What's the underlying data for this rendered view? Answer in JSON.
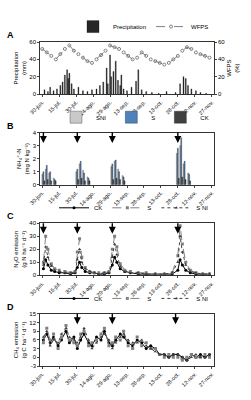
{
  "chart_data": [
    {
      "title": "A",
      "type": "bar",
      "xlim": [
        -2,
        152
      ],
      "xticks": [
        {
          "value": 0,
          "label": "30-jun."
        },
        {
          "value": 15,
          "label": "15-jul."
        },
        {
          "value": 30,
          "label": "30-jul."
        },
        {
          "value": 45,
          "label": "14-ago."
        },
        {
          "value": 60,
          "label": "29-ago."
        },
        {
          "value": 75,
          "label": "13-sep."
        },
        {
          "value": 90,
          "label": "28-sep."
        },
        {
          "value": 105,
          "label": "13-oct."
        },
        {
          "value": 120,
          "label": "28-oct."
        },
        {
          "value": 135,
          "label": "12-nov."
        },
        {
          "value": 150,
          "label": "27-nov."
        }
      ],
      "ylabel": "Precipitation (mm)",
      "ylim": [
        0,
        60
      ],
      "yticks": [
        0,
        20,
        40,
        60
      ],
      "y2label": "WFPS (%)",
      "y2lim": [
        0,
        60
      ],
      "y2ticks": [
        0,
        20,
        40,
        60
      ],
      "series": [
        {
          "name": "Precipitation",
          "type": "bar",
          "color": "#262626",
          "x": [
            2,
            5,
            7,
            10,
            13,
            16,
            18,
            20,
            22,
            23,
            24,
            26,
            28,
            32,
            36,
            40,
            44,
            48,
            51,
            54,
            57,
            58,
            60,
            61,
            63,
            65,
            67,
            69,
            70,
            72,
            75,
            79,
            83,
            85,
            88,
            92,
            97,
            103,
            110,
            118,
            122,
            125,
            127,
            129,
            132,
            136,
            140,
            145
          ],
          "values": [
            5,
            3,
            8,
            4,
            6,
            10,
            14,
            22,
            28,
            18,
            24,
            12,
            6,
            8,
            4,
            3,
            5,
            6,
            10,
            14,
            30,
            12,
            45,
            20,
            26,
            38,
            16,
            10,
            22,
            6,
            4,
            8,
            15,
            28,
            5,
            3,
            2,
            1,
            3,
            2,
            12,
            20,
            18,
            10,
            6,
            4,
            2,
            1
          ]
        },
        {
          "name": "WFPS",
          "type": "line",
          "axis": "y2",
          "color": "#7f7f7f",
          "marker": "circle-open",
          "line_style": "dash",
          "x": [
            0,
            4,
            8,
            12,
            16,
            20,
            24,
            28,
            32,
            36,
            40,
            44,
            48,
            52,
            56,
            60,
            64,
            68,
            72,
            76,
            80,
            84,
            88,
            92,
            96,
            100,
            104,
            108,
            112,
            116,
            120,
            124,
            128,
            132,
            136,
            140,
            144,
            148
          ],
          "values": [
            52,
            48,
            44,
            40,
            46,
            52,
            56,
            50,
            46,
            42,
            38,
            36,
            40,
            45,
            50,
            56,
            54,
            52,
            48,
            44,
            40,
            42,
            48,
            44,
            40,
            38,
            36,
            34,
            36,
            40,
            44,
            50,
            54,
            52,
            48,
            46,
            44,
            42
          ]
        }
      ]
    },
    {
      "title": "B",
      "type": "bar",
      "xlim": [
        -2,
        152
      ],
      "xticks": [
        {
          "value": 0,
          "label": "30-jun."
        },
        {
          "value": 15,
          "label": "15-jul."
        },
        {
          "value": 30,
          "label": "30-jul."
        },
        {
          "value": 45,
          "label": "14-ago."
        },
        {
          "value": 60,
          "label": "29-ago."
        },
        {
          "value": 75,
          "label": "13-sep."
        },
        {
          "value": 90,
          "label": "28-sep."
        },
        {
          "value": 105,
          "label": "13-oct."
        },
        {
          "value": 120,
          "label": "28-oct."
        },
        {
          "value": 135,
          "label": "12-nov."
        },
        {
          "value": 150,
          "label": "27-nov."
        }
      ],
      "ylabel": "NH₄⁺-N (mg N kg⁻¹)",
      "ylim": [
        0,
        4
      ],
      "yticks": [
        0,
        1,
        2,
        3,
        4
      ],
      "arrows": [
        1,
        31,
        62,
        120
      ],
      "x": [
        1,
        4,
        7,
        11,
        31,
        34,
        37,
        41,
        62,
        65,
        68,
        72,
        120,
        123,
        126,
        130
      ],
      "series": [
        {
          "name": "SNI",
          "color": "#c9c9c9",
          "values": [
            0.8,
            1.2,
            0.9,
            0.5,
            1.0,
            1.6,
            1.1,
            0.6,
            1.4,
            1.8,
            1.2,
            0.7,
            2.4,
            3.0,
            1.6,
            0.9
          ]
        },
        {
          "name": "S",
          "color": "#4f81bd",
          "values": [
            1.0,
            1.5,
            1.0,
            0.4,
            1.2,
            1.8,
            0.9,
            0.5,
            1.6,
            1.9,
            1.0,
            0.6,
            2.8,
            3.6,
            1.8,
            0.8
          ]
        },
        {
          "name": "CK",
          "color": "#404040",
          "values": [
            0.3,
            0.4,
            0.3,
            0.3,
            0.4,
            0.5,
            0.3,
            0.3,
            0.4,
            0.5,
            0.4,
            0.3,
            0.5,
            0.6,
            0.4,
            0.3
          ]
        }
      ]
    },
    {
      "title": "C",
      "type": "line",
      "xlim": [
        -2,
        152
      ],
      "xticks": [
        {
          "value": 0,
          "label": "30-jun."
        },
        {
          "value": 15,
          "label": "15-jul."
        },
        {
          "value": 30,
          "label": "30-jul."
        },
        {
          "value": 45,
          "label": "14-ago."
        },
        {
          "value": 60,
          "label": "29-ago."
        },
        {
          "value": 75,
          "label": "13-sep."
        },
        {
          "value": 90,
          "label": "28-sep."
        },
        {
          "value": 105,
          "label": "13-oct."
        },
        {
          "value": 120,
          "label": "28-oct."
        },
        {
          "value": 135,
          "label": "12-nov."
        },
        {
          "value": 150,
          "label": "27-nov."
        }
      ],
      "ylabel": "N₂O emission (g N ha⁻¹ d⁻¹)",
      "ylim": [
        0,
        40
      ],
      "yticks": [
        0,
        10,
        20,
        30,
        40
      ],
      "arrows": [
        1,
        31,
        62,
        120
      ],
      "x": [
        1,
        3,
        5,
        8,
        11,
        15,
        20,
        25,
        29,
        31,
        33,
        35,
        38,
        42,
        46,
        50,
        55,
        59,
        62,
        64,
        66,
        69,
        73,
        78,
        85,
        92,
        100,
        108,
        115,
        120,
        122,
        124,
        127,
        131,
        136,
        142,
        148
      ],
      "series": [
        {
          "name": "CK",
          "color": "#000000",
          "marker": "circle",
          "line_style": "solid",
          "values": [
            5,
            12,
            8,
            4,
            3,
            2,
            2,
            1,
            2,
            6,
            10,
            6,
            3,
            2,
            2,
            1,
            1,
            2,
            8,
            14,
            10,
            5,
            3,
            2,
            1,
            1,
            1,
            1,
            1,
            4,
            12,
            8,
            4,
            2,
            1,
            1,
            1
          ]
        },
        {
          "name": "S",
          "color": "#808080",
          "marker": "square",
          "line_style": "dash",
          "values": [
            10,
            30,
            20,
            9,
            5,
            4,
            3,
            2,
            3,
            18,
            28,
            14,
            6,
            3,
            2,
            2,
            2,
            3,
            20,
            30,
            22,
            9,
            4,
            3,
            2,
            2,
            1,
            1,
            2,
            15,
            38,
            24,
            10,
            4,
            2,
            1,
            1
          ]
        },
        {
          "name": "S NI",
          "color": "#404040",
          "marker": "triangle-up",
          "line_style": "dot",
          "values": [
            8,
            22,
            14,
            7,
            4,
            3,
            2,
            2,
            2,
            12,
            20,
            10,
            5,
            3,
            2,
            1,
            2,
            2,
            14,
            24,
            16,
            7,
            3,
            2,
            2,
            1,
            1,
            1,
            2,
            10,
            30,
            18,
            8,
            3,
            2,
            1,
            1
          ]
        }
      ]
    },
    {
      "title": "D",
      "type": "line",
      "xlim": [
        -2,
        152
      ],
      "xticks": [
        {
          "value": 0,
          "label": "30-jun."
        },
        {
          "value": 15,
          "label": "15-jul."
        },
        {
          "value": 30,
          "label": "30-jul."
        },
        {
          "value": 45,
          "label": "14-ago."
        },
        {
          "value": 60,
          "label": "29-ago."
        },
        {
          "value": 75,
          "label": "13-sep."
        },
        {
          "value": 90,
          "label": "28-sep."
        },
        {
          "value": 105,
          "label": "13-oct."
        },
        {
          "value": 120,
          "label": "28-oct."
        },
        {
          "value": 135,
          "label": "12-nov."
        },
        {
          "value": 150,
          "label": "27-nov."
        }
      ],
      "ylabel": "CH₄ emission (g C ha⁻¹ d⁻¹)",
      "ylim": [
        -3,
        15
      ],
      "yticks": [
        -3,
        0,
        3,
        6,
        9,
        12,
        15
      ],
      "arrows": [
        31,
        62,
        118
      ],
      "x": [
        1,
        4,
        7,
        10,
        14,
        17,
        21,
        24,
        28,
        31,
        34,
        37,
        41,
        44,
        48,
        52,
        55,
        59,
        62,
        65,
        69,
        72,
        76,
        80,
        84,
        88,
        92,
        96,
        100,
        104,
        108,
        112,
        116,
        120,
        124,
        128,
        132,
        136,
        140,
        144,
        148
      ],
      "series": [
        {
          "name": "CK",
          "color": "#000000",
          "marker": "circle",
          "line_style": "solid",
          "values": [
            6,
            8,
            5,
            7,
            4,
            6,
            9,
            5,
            7,
            3,
            6,
            8,
            5,
            4,
            7,
            6,
            9,
            5,
            4,
            6,
            8,
            7,
            5,
            4,
            6,
            5,
            3,
            4,
            3,
            1,
            1,
            0,
            1,
            1,
            0,
            -1,
            1,
            0,
            1,
            0,
            1
          ]
        },
        {
          "name": "S",
          "color": "#808080",
          "marker": "square",
          "line_style": "dash",
          "values": [
            5,
            10,
            6,
            8,
            3,
            7,
            11,
            6,
            5,
            4,
            8,
            9,
            4,
            5,
            6,
            8,
            10,
            4,
            5,
            7,
            6,
            9,
            4,
            3,
            7,
            4,
            5,
            3,
            3,
            1,
            0,
            1,
            0,
            0,
            -1,
            0,
            1,
            0,
            0,
            1,
            0
          ]
        },
        {
          "name": "S NI",
          "color": "#404040",
          "marker": "triangle-up",
          "line_style": "dot",
          "values": [
            7,
            9,
            4,
            6,
            5,
            8,
            10,
            7,
            6,
            5,
            7,
            10,
            6,
            3,
            5,
            7,
            8,
            6,
            3,
            5,
            7,
            8,
            6,
            5,
            5,
            6,
            4,
            3,
            2,
            1,
            1,
            0,
            1,
            1,
            0,
            -1,
            0,
            1,
            0,
            0,
            1
          ]
        }
      ]
    }
  ]
}
